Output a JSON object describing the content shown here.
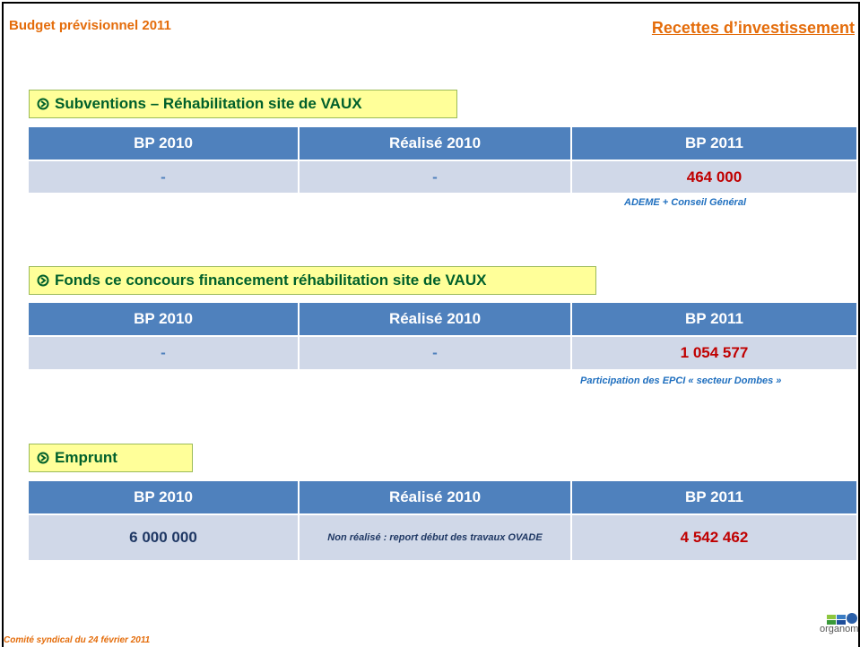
{
  "header": {
    "title": "Budget prévisionnel 2011",
    "section": "Recettes d’investissement"
  },
  "sections": [
    {
      "label": "Subventions – Réhabilitation site de VAUX",
      "table": {
        "columns": [
          "BP 2010",
          "Réalisé 2010",
          "BP 2011"
        ],
        "rows": [
          [
            "-",
            "-",
            "464 000"
          ]
        ]
      },
      "note": "ADEME + Conseil Général"
    },
    {
      "label": "Fonds ce concours financement réhabilitation site de VAUX",
      "table": {
        "columns": [
          "BP 2010",
          "Réalisé 2010",
          "BP 2011"
        ],
        "rows": [
          [
            "-",
            "-",
            "1 054 577"
          ]
        ]
      },
      "note": "Participation des EPCI « secteur Dombes »"
    },
    {
      "label": "Emprunt",
      "table": {
        "columns": [
          "BP 2010",
          "Réalisé 2010",
          "BP 2011"
        ],
        "rows": [
          [
            "6 000 000",
            "Non réalisé  : report début des travaux OVADE",
            "4 542 462"
          ]
        ]
      }
    }
  ],
  "footer": {
    "text": "Comité syndical du 24 février 2011",
    "logo": "organom"
  }
}
